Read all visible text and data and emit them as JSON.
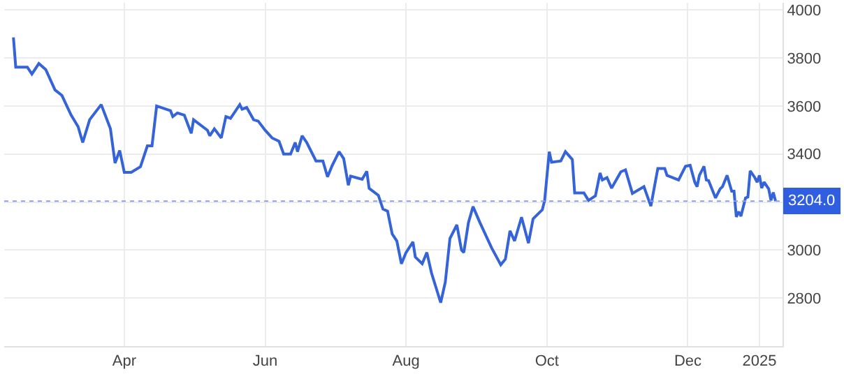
{
  "chart_data": {
    "type": "line",
    "x": [
      "2024-02-13",
      "2024-02-14",
      "2024-02-19",
      "2024-02-21",
      "2024-02-24",
      "2024-02-27",
      "2024-03-02",
      "2024-03-05",
      "2024-03-09",
      "2024-03-12",
      "2024-03-14",
      "2024-03-17",
      "2024-03-22",
      "2024-03-26",
      "2024-03-28",
      "2024-03-30",
      "2024-04-01",
      "2024-04-04",
      "2024-04-08",
      "2024-04-11",
      "2024-04-13",
      "2024-04-15",
      "2024-04-21",
      "2024-04-22",
      "2024-04-24",
      "2024-04-27",
      "2024-04-30",
      "2024-05-01",
      "2024-05-07",
      "2024-05-08",
      "2024-05-10",
      "2024-05-13",
      "2024-05-15",
      "2024-05-17",
      "2024-05-21",
      "2024-05-22",
      "2024-05-24",
      "2024-05-27",
      "2024-05-29",
      "2024-06-01",
      "2024-06-04",
      "2024-06-07",
      "2024-06-09",
      "2024-06-12",
      "2024-06-14",
      "2024-06-15",
      "2024-06-17",
      "2024-06-19",
      "2024-06-23",
      "2024-06-26",
      "2024-06-28",
      "2024-06-30",
      "2024-07-03",
      "2024-07-05",
      "2024-07-07",
      "2024-07-08",
      "2024-07-13",
      "2024-07-15",
      "2024-07-16",
      "2024-07-20",
      "2024-07-22",
      "2024-07-24",
      "2024-07-26",
      "2024-07-28",
      "2024-07-30",
      "2024-08-01",
      "2024-08-04",
      "2024-08-05",
      "2024-08-08",
      "2024-08-10",
      "2024-08-12",
      "2024-08-16",
      "2024-08-18",
      "2024-08-20",
      "2024-08-23",
      "2024-08-25",
      "2024-08-26",
      "2024-08-28",
      "2024-08-30",
      "2024-09-02",
      "2024-09-07",
      "2024-09-11",
      "2024-09-13",
      "2024-09-15",
      "2024-09-17",
      "2024-09-20",
      "2024-09-23",
      "2024-09-25",
      "2024-09-29",
      "2024-09-30",
      "2024-10-02",
      "2024-10-03",
      "2024-10-07",
      "2024-10-09",
      "2024-10-12",
      "2024-10-13",
      "2024-10-17",
      "2024-10-19",
      "2024-10-22",
      "2024-10-24",
      "2024-10-25",
      "2024-10-27",
      "2024-10-29",
      "2024-11-02",
      "2024-11-04",
      "2024-11-07",
      "2024-11-12",
      "2024-11-15",
      "2024-11-18",
      "2024-11-21",
      "2024-11-22",
      "2024-11-27",
      "2024-11-30",
      "2024-12-02",
      "2024-12-04",
      "2024-12-05",
      "2024-12-06",
      "2024-12-08",
      "2024-12-09",
      "2024-12-10",
      "2024-12-13",
      "2024-12-15",
      "2024-12-16",
      "2024-12-18",
      "2024-12-20",
      "2024-12-21",
      "2024-12-22",
      "2024-12-23",
      "2024-12-24",
      "2024-12-26",
      "2024-12-27",
      "2024-12-28",
      "2024-12-30",
      "2024-12-31",
      "2025-01-01",
      "2025-01-02",
      "2025-01-03",
      "2025-01-05",
      "2025-01-06",
      "2025-01-07",
      "2025-01-08"
    ],
    "series": [
      {
        "color": "#3563d8",
        "values": [
          3886,
          3762,
          3762,
          3733,
          3777,
          3752,
          3667,
          3644,
          3562,
          3514,
          3448,
          3543,
          3606,
          3505,
          3362,
          3415,
          3324,
          3324,
          3347,
          3434,
          3434,
          3600,
          3581,
          3556,
          3571,
          3562,
          3486,
          3543,
          3499,
          3476,
          3505,
          3467,
          3556,
          3549,
          3606,
          3587,
          3594,
          3543,
          3537,
          3499,
          3467,
          3453,
          3400,
          3400,
          3448,
          3410,
          3476,
          3448,
          3371,
          3371,
          3305,
          3352,
          3410,
          3381,
          3270,
          3308,
          3295,
          3328,
          3257,
          3228,
          3171,
          3162,
          3067,
          3038,
          2943,
          2990,
          3034,
          2971,
          2943,
          2990,
          2905,
          2781,
          2867,
          3048,
          3105,
          3000,
          2990,
          3114,
          3181,
          3114,
          3010,
          2939,
          2962,
          3080,
          3038,
          3137,
          3029,
          3130,
          3168,
          3206,
          3410,
          3366,
          3371,
          3410,
          3377,
          3238,
          3238,
          3207,
          3226,
          3321,
          3292,
          3302,
          3258,
          3326,
          3334,
          3236,
          3264,
          3183,
          3340,
          3340,
          3311,
          3292,
          3349,
          3353,
          3283,
          3264,
          3311,
          3349,
          3292,
          3289,
          3217,
          3255,
          3264,
          3311,
          3245,
          3245,
          3138,
          3160,
          3141,
          3217,
          3221,
          3330,
          3302,
          3283,
          3311,
          3258,
          3283,
          3255,
          3207,
          3240,
          3204
        ]
      }
    ],
    "xlim": [
      "2024-02-09",
      "2025-01-11"
    ],
    "xticks": [
      {
        "value": "2024-04-01",
        "label": "Apr"
      },
      {
        "value": "2024-06-01",
        "label": "Jun"
      },
      {
        "value": "2024-08-01",
        "label": "Aug"
      },
      {
        "value": "2024-10-01",
        "label": "Oct"
      },
      {
        "value": "2024-12-01",
        "label": "Dec"
      },
      {
        "value": "2025-01-01",
        "label": "2025"
      }
    ],
    "ylim": [
      2600,
      4030
    ],
    "yticks": [
      2800,
      3000,
      {
        "value": 3200,
        "label": null
      },
      3400,
      3600,
      3800,
      4000
    ],
    "ref_lines": [
      {
        "axis": "y",
        "value": 3204.0,
        "label": "3204.0",
        "color": "#8c9ff0",
        "line_style": "dotted"
      }
    ],
    "grid": true,
    "marker": "none",
    "line_style": "solid"
  }
}
